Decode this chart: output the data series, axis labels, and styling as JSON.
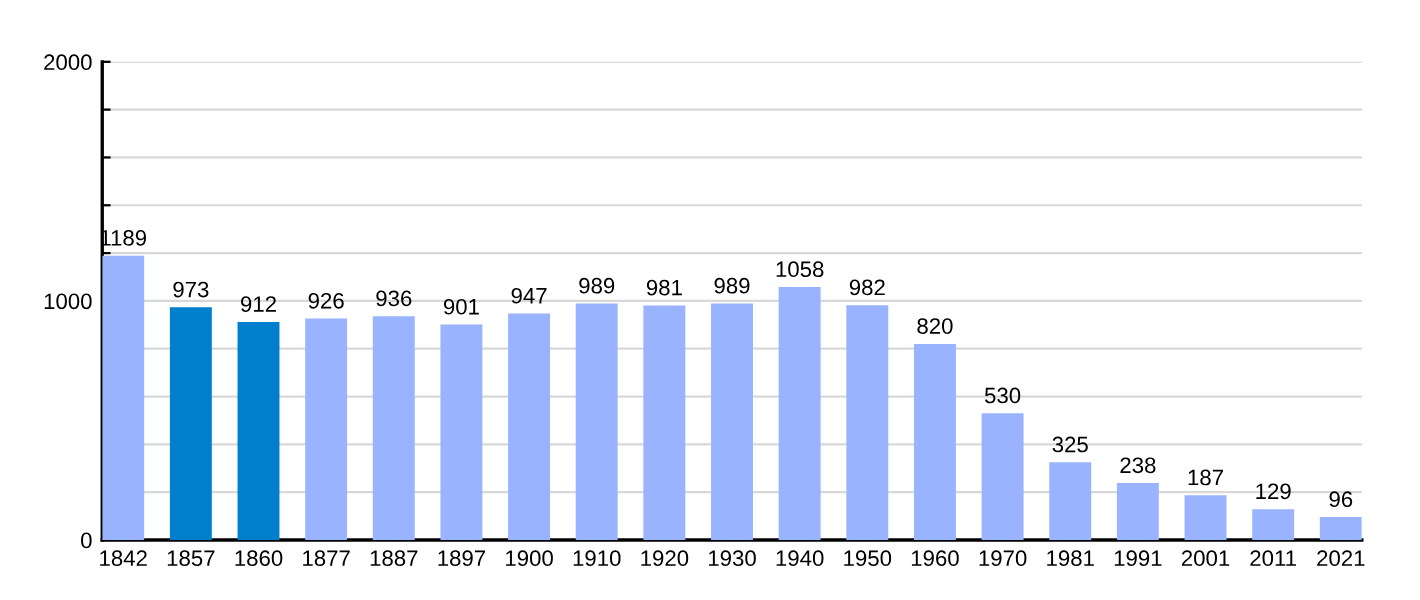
{
  "chart_data": {
    "type": "bar",
    "categories": [
      "1842",
      "1857",
      "1860",
      "1877",
      "1887",
      "1897",
      "1900",
      "1910",
      "1920",
      "1930",
      "1940",
      "1950",
      "1960",
      "1970",
      "1981",
      "1991",
      "2001",
      "2011",
      "2021"
    ],
    "values": [
      1189,
      973,
      912,
      926,
      936,
      901,
      947,
      989,
      981,
      989,
      1058,
      982,
      820,
      530,
      325,
      238,
      187,
      129,
      96
    ],
    "colors": [
      "#99b3ff",
      "#0080cc",
      "#0080cc",
      "#99b3ff",
      "#99b3ff",
      "#99b3ff",
      "#99b3ff",
      "#99b3ff",
      "#99b3ff",
      "#99b3ff",
      "#99b3ff",
      "#99b3ff",
      "#99b3ff",
      "#99b3ff",
      "#99b3ff",
      "#99b3ff",
      "#99b3ff",
      "#99b3ff",
      "#99b3ff"
    ],
    "ylim": [
      0,
      2000
    ],
    "yticks": [
      0,
      {
        "value": 200,
        "label": null
      },
      {
        "value": 400,
        "label": null
      },
      {
        "value": 600,
        "label": null
      },
      {
        "value": 800,
        "label": null
      },
      1000,
      {
        "value": 1200,
        "label": null
      },
      {
        "value": 1400,
        "label": null
      },
      {
        "value": 1600,
        "label": null
      },
      {
        "value": 1800,
        "label": null
      },
      2000
    ],
    "grid": "y",
    "data_labels": true
  }
}
